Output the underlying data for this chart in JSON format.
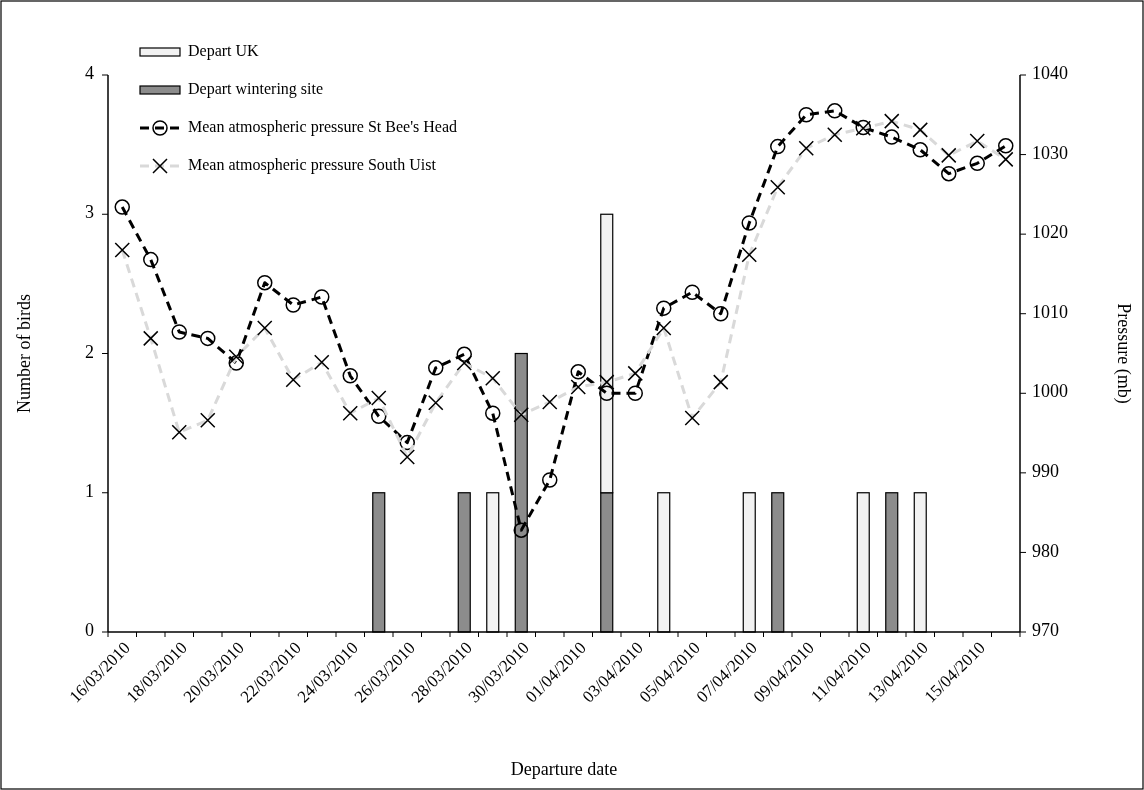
{
  "chart_data": {
    "type": "bar",
    "xlabel": "Departure date",
    "ylabel": "Number of birds",
    "y2label": "Pressure (mb)",
    "categories": [
      "16/03/2010",
      null,
      "18/03/2010",
      null,
      "20/03/2010",
      null,
      "22/03/2010",
      null,
      "24/03/2010",
      null,
      "26/03/2010",
      null,
      "28/03/2010",
      null,
      "30/03/2010",
      null,
      "01/04/2010",
      null,
      "03/04/2010",
      null,
      "05/04/2010",
      null,
      "07/04/2010",
      null,
      "09/04/2010",
      null,
      "11/04/2010",
      null,
      "13/04/2010",
      null,
      "15/04/2010",
      null
    ],
    "stacked": true,
    "series": [
      {
        "name": "Depart wintering site",
        "color": "#8c8c8c",
        "values": [
          0,
          0,
          0,
          0,
          0,
          0,
          0,
          0,
          0,
          1,
          0,
          0,
          1,
          0,
          2,
          0,
          0,
          1,
          0,
          0,
          0,
          0,
          0,
          1,
          0,
          0,
          0,
          1,
          0,
          0,
          0,
          0
        ]
      },
      {
        "name": "Depart UK",
        "color": "#f2f2f2",
        "values": [
          0,
          0,
          0,
          0,
          0,
          0,
          0,
          0,
          0,
          0,
          0,
          0,
          0,
          1,
          0,
          0,
          0,
          2,
          0,
          1,
          0,
          0,
          1,
          0,
          0,
          0,
          1,
          0,
          1,
          0,
          0,
          0
        ]
      },
      {
        "name": "Mean atmospheric pressure St Bee's Head",
        "type": "line",
        "axis": "y2",
        "color": "#000000",
        "marker": "circle",
        "line_style": "dashed",
        "values": [
          1023.4,
          1016.8,
          1007.7,
          1006.9,
          1003.8,
          1013.9,
          1011.1,
          1012.1,
          1002.2,
          997.1,
          993.8,
          1003.2,
          1004.9,
          997.5,
          982.8,
          989.1,
          1002.7,
          1000,
          1000,
          1010.7,
          1012.7,
          1010,
          1021.4,
          1031,
          1035,
          1035.5,
          1033.4,
          1032.2,
          1030.6,
          1027.6,
          1028.9,
          1031.1
        ]
      },
      {
        "name": "Mean atmospheric pressure South Uist",
        "type": "line",
        "axis": "y2",
        "color": "#d9d9d9",
        "marker": "cross",
        "line_style": "dashed",
        "values": [
          1018,
          1006.9,
          995.1,
          996.6,
          1004.6,
          1008.2,
          1001.7,
          1003.9,
          997.5,
          999.4,
          992,
          998.8,
          1003.8,
          1001.9,
          997.3,
          998.9,
          1000.8,
          1001.4,
          1002.5,
          1008.2,
          996.9,
          1001.4,
          1017.4,
          1025.9,
          1030.8,
          1032.5,
          1033.3,
          1034.2,
          1033.1,
          1029.9,
          1031.7,
          1029.4
        ]
      }
    ],
    "ylim": [
      0,
      4
    ],
    "yticks": [
      0,
      1,
      2,
      3,
      4
    ],
    "y2lim": [
      970,
      1040
    ],
    "y2ticks": [
      970,
      980,
      990,
      1000,
      1010,
      1020,
      1030,
      1040
    ],
    "grid": false,
    "legend": "top left"
  }
}
